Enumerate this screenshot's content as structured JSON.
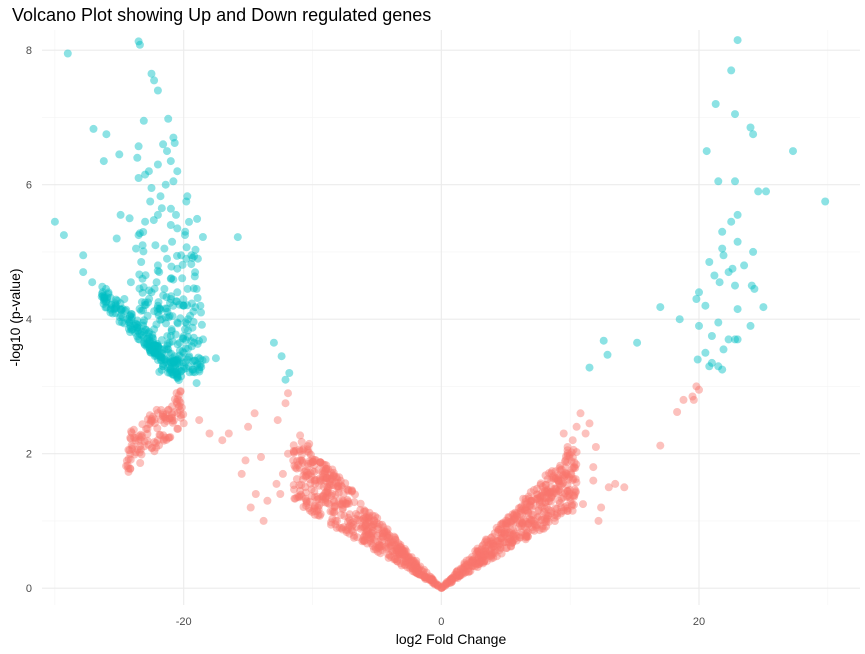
{
  "chart_data": {
    "type": "scatter",
    "title": "Volcano Plot showing Up and Down regulated genes",
    "xlabel": "log2 Fold Change",
    "ylabel": "-log10 (p-value)",
    "xlim": [
      -31,
      32.5
    ],
    "ylim": [
      -0.25,
      8.3
    ],
    "x_ticks": [
      -20,
      0,
      20
    ],
    "x_tick_labels": [
      "-20",
      "0",
      "20"
    ],
    "y_ticks": [
      0,
      2,
      4,
      6,
      8
    ],
    "y_tick_labels": [
      "0",
      "2",
      "4",
      "6",
      "8"
    ],
    "grid": true,
    "legend": "none",
    "significance_threshold_neglog10p": 3.0,
    "colors": {
      "down": "#00BFC4",
      "not_significant": "#F8766D",
      "up": "#00BFC4"
    },
    "series": [
      {
        "points": [
          [
            -29.0,
            7.95
          ],
          [
            -23.5,
            8.13
          ],
          [
            -23.4,
            8.08
          ],
          [
            -22.5,
            7.65
          ],
          [
            -22.0,
            7.4
          ],
          [
            -22.3,
            7.55
          ],
          [
            -21.2,
            6.98
          ],
          [
            -23.1,
            6.95
          ],
          [
            -27.0,
            6.83
          ],
          [
            -26.0,
            6.75
          ],
          [
            -20.8,
            6.7
          ],
          [
            -21.6,
            6.6
          ],
          [
            -23.5,
            6.57
          ],
          [
            -20.7,
            6.62
          ],
          [
            -21.3,
            6.5
          ],
          [
            -26.2,
            6.35
          ],
          [
            -25.0,
            6.45
          ],
          [
            -23.6,
            6.4
          ],
          [
            -22.0,
            6.3
          ],
          [
            -21.0,
            6.35
          ],
          [
            -20.5,
            6.2
          ],
          [
            -22.7,
            6.2
          ],
          [
            -23.5,
            6.1
          ],
          [
            -23.0,
            6.15
          ],
          [
            -20.8,
            6.05
          ],
          [
            -21.4,
            6.0
          ],
          [
            -22.5,
            5.95
          ],
          [
            -19.8,
            5.75
          ],
          [
            -21.7,
            5.65
          ],
          [
            -30.0,
            5.45
          ],
          [
            -29.3,
            5.25
          ],
          [
            -24.9,
            5.55
          ],
          [
            -24.2,
            5.5
          ],
          [
            -22.0,
            5.55
          ],
          [
            -23.0,
            5.45
          ],
          [
            -21.0,
            5.4
          ],
          [
            -20.5,
            5.35
          ],
          [
            -15.8,
            5.22
          ],
          [
            -25.2,
            5.2
          ],
          [
            -23.5,
            5.25
          ],
          [
            -22.2,
            5.1
          ],
          [
            -21.5,
            5.05
          ],
          [
            -27.8,
            4.95
          ],
          [
            -23.3,
            4.85
          ],
          [
            -22.0,
            4.8
          ],
          [
            -21.3,
            4.9
          ],
          [
            -20.5,
            4.75
          ],
          [
            -19.4,
            4.95
          ],
          [
            -18.9,
            4.9
          ],
          [
            -27.8,
            4.7
          ],
          [
            -27.1,
            4.55
          ],
          [
            -24.1,
            4.55
          ],
          [
            -23.2,
            4.6
          ],
          [
            -22.5,
            4.4
          ],
          [
            -21.5,
            4.45
          ],
          [
            -20.5,
            4.4
          ],
          [
            -19.7,
            4.45
          ],
          [
            -19.0,
            4.45
          ],
          [
            -24.6,
            4.3
          ],
          [
            -23.0,
            4.25
          ],
          [
            -22.0,
            4.2
          ],
          [
            -21.0,
            4.3
          ],
          [
            -20.0,
            4.2
          ],
          [
            -18.7,
            4.2
          ],
          [
            -22.8,
            4.05
          ],
          [
            -21.7,
            4.0
          ],
          [
            -20.5,
            3.95
          ],
          [
            -19.5,
            4.05
          ],
          [
            -23.8,
            3.9
          ],
          [
            -22.3,
            3.85
          ],
          [
            -21.0,
            3.75
          ],
          [
            -20.3,
            3.65
          ],
          [
            -19.2,
            3.65
          ],
          [
            -18.5,
            3.7
          ],
          [
            -22.0,
            3.6
          ],
          [
            -21.2,
            3.55
          ],
          [
            -20.0,
            3.5
          ],
          [
            -18.3,
            3.4
          ],
          [
            -17.5,
            3.42
          ],
          [
            -20.8,
            3.35
          ],
          [
            -19.6,
            3.3
          ],
          [
            -18.8,
            3.25
          ],
          [
            -20.2,
            3.15
          ],
          [
            -19.0,
            3.05
          ],
          [
            -13.0,
            3.65
          ],
          [
            -12.4,
            3.45
          ],
          [
            -11.8,
            3.2
          ],
          [
            -12.1,
            3.1
          ],
          [
            -21.0,
            4.6
          ],
          [
            -20.2,
            4.95
          ],
          [
            -22.6,
            5.75
          ],
          [
            -20.6,
            5.55
          ],
          [
            -21.9,
            4.7
          ],
          [
            -20.9,
            5.15
          ],
          [
            -19.9,
            5.25
          ],
          [
            -23.7,
            5.05
          ],
          [
            -24.9,
            4.15
          ],
          [
            -23.6,
            3.98
          ],
          [
            -20.7,
            3.45
          ],
          [
            -21.6,
            3.3
          ],
          [
            -19.9,
            3.85
          ],
          [
            -22.1,
            4.55
          ]
        ]
      },
      {
        "points": [
          [
            23.0,
            8.15
          ],
          [
            22.5,
            7.7
          ],
          [
            21.3,
            7.2
          ],
          [
            22.8,
            7.05
          ],
          [
            24.0,
            6.85
          ],
          [
            24.2,
            6.75
          ],
          [
            27.3,
            6.5
          ],
          [
            20.6,
            6.5
          ],
          [
            21.5,
            6.05
          ],
          [
            22.8,
            6.05
          ],
          [
            24.6,
            5.9
          ],
          [
            25.2,
            5.9
          ],
          [
            29.8,
            5.75
          ],
          [
            23.0,
            5.55
          ],
          [
            22.5,
            5.45
          ],
          [
            21.8,
            5.3
          ],
          [
            23.0,
            5.15
          ],
          [
            24.2,
            5.0
          ],
          [
            21.8,
            5.05
          ],
          [
            20.8,
            4.85
          ],
          [
            23.5,
            4.8
          ],
          [
            22.3,
            4.7
          ],
          [
            21.2,
            4.65
          ],
          [
            21.6,
            4.55
          ],
          [
            22.8,
            4.5
          ],
          [
            20.0,
            4.4
          ],
          [
            19.8,
            4.3
          ],
          [
            24.3,
            4.45
          ],
          [
            17.0,
            4.18
          ],
          [
            20.5,
            4.2
          ],
          [
            23.0,
            4.15
          ],
          [
            25.0,
            4.18
          ],
          [
            18.5,
            4.0
          ],
          [
            20.0,
            3.9
          ],
          [
            21.5,
            3.95
          ],
          [
            24.0,
            3.9
          ],
          [
            21.0,
            3.75
          ],
          [
            22.3,
            3.7
          ],
          [
            23.0,
            3.7
          ],
          [
            20.5,
            3.5
          ],
          [
            21.9,
            3.55
          ],
          [
            19.9,
            3.4
          ],
          [
            21.0,
            3.35
          ],
          [
            21.8,
            3.25
          ],
          [
            20.8,
            3.3
          ],
          [
            21.5,
            3.3
          ],
          [
            22.8,
            3.7
          ],
          [
            12.6,
            3.68
          ],
          [
            15.2,
            3.65
          ],
          [
            12.9,
            3.47
          ],
          [
            11.5,
            3.28
          ],
          [
            24.1,
            4.5
          ],
          [
            22.6,
            4.75
          ],
          [
            21.9,
            4.95
          ]
        ]
      }
    ]
  }
}
